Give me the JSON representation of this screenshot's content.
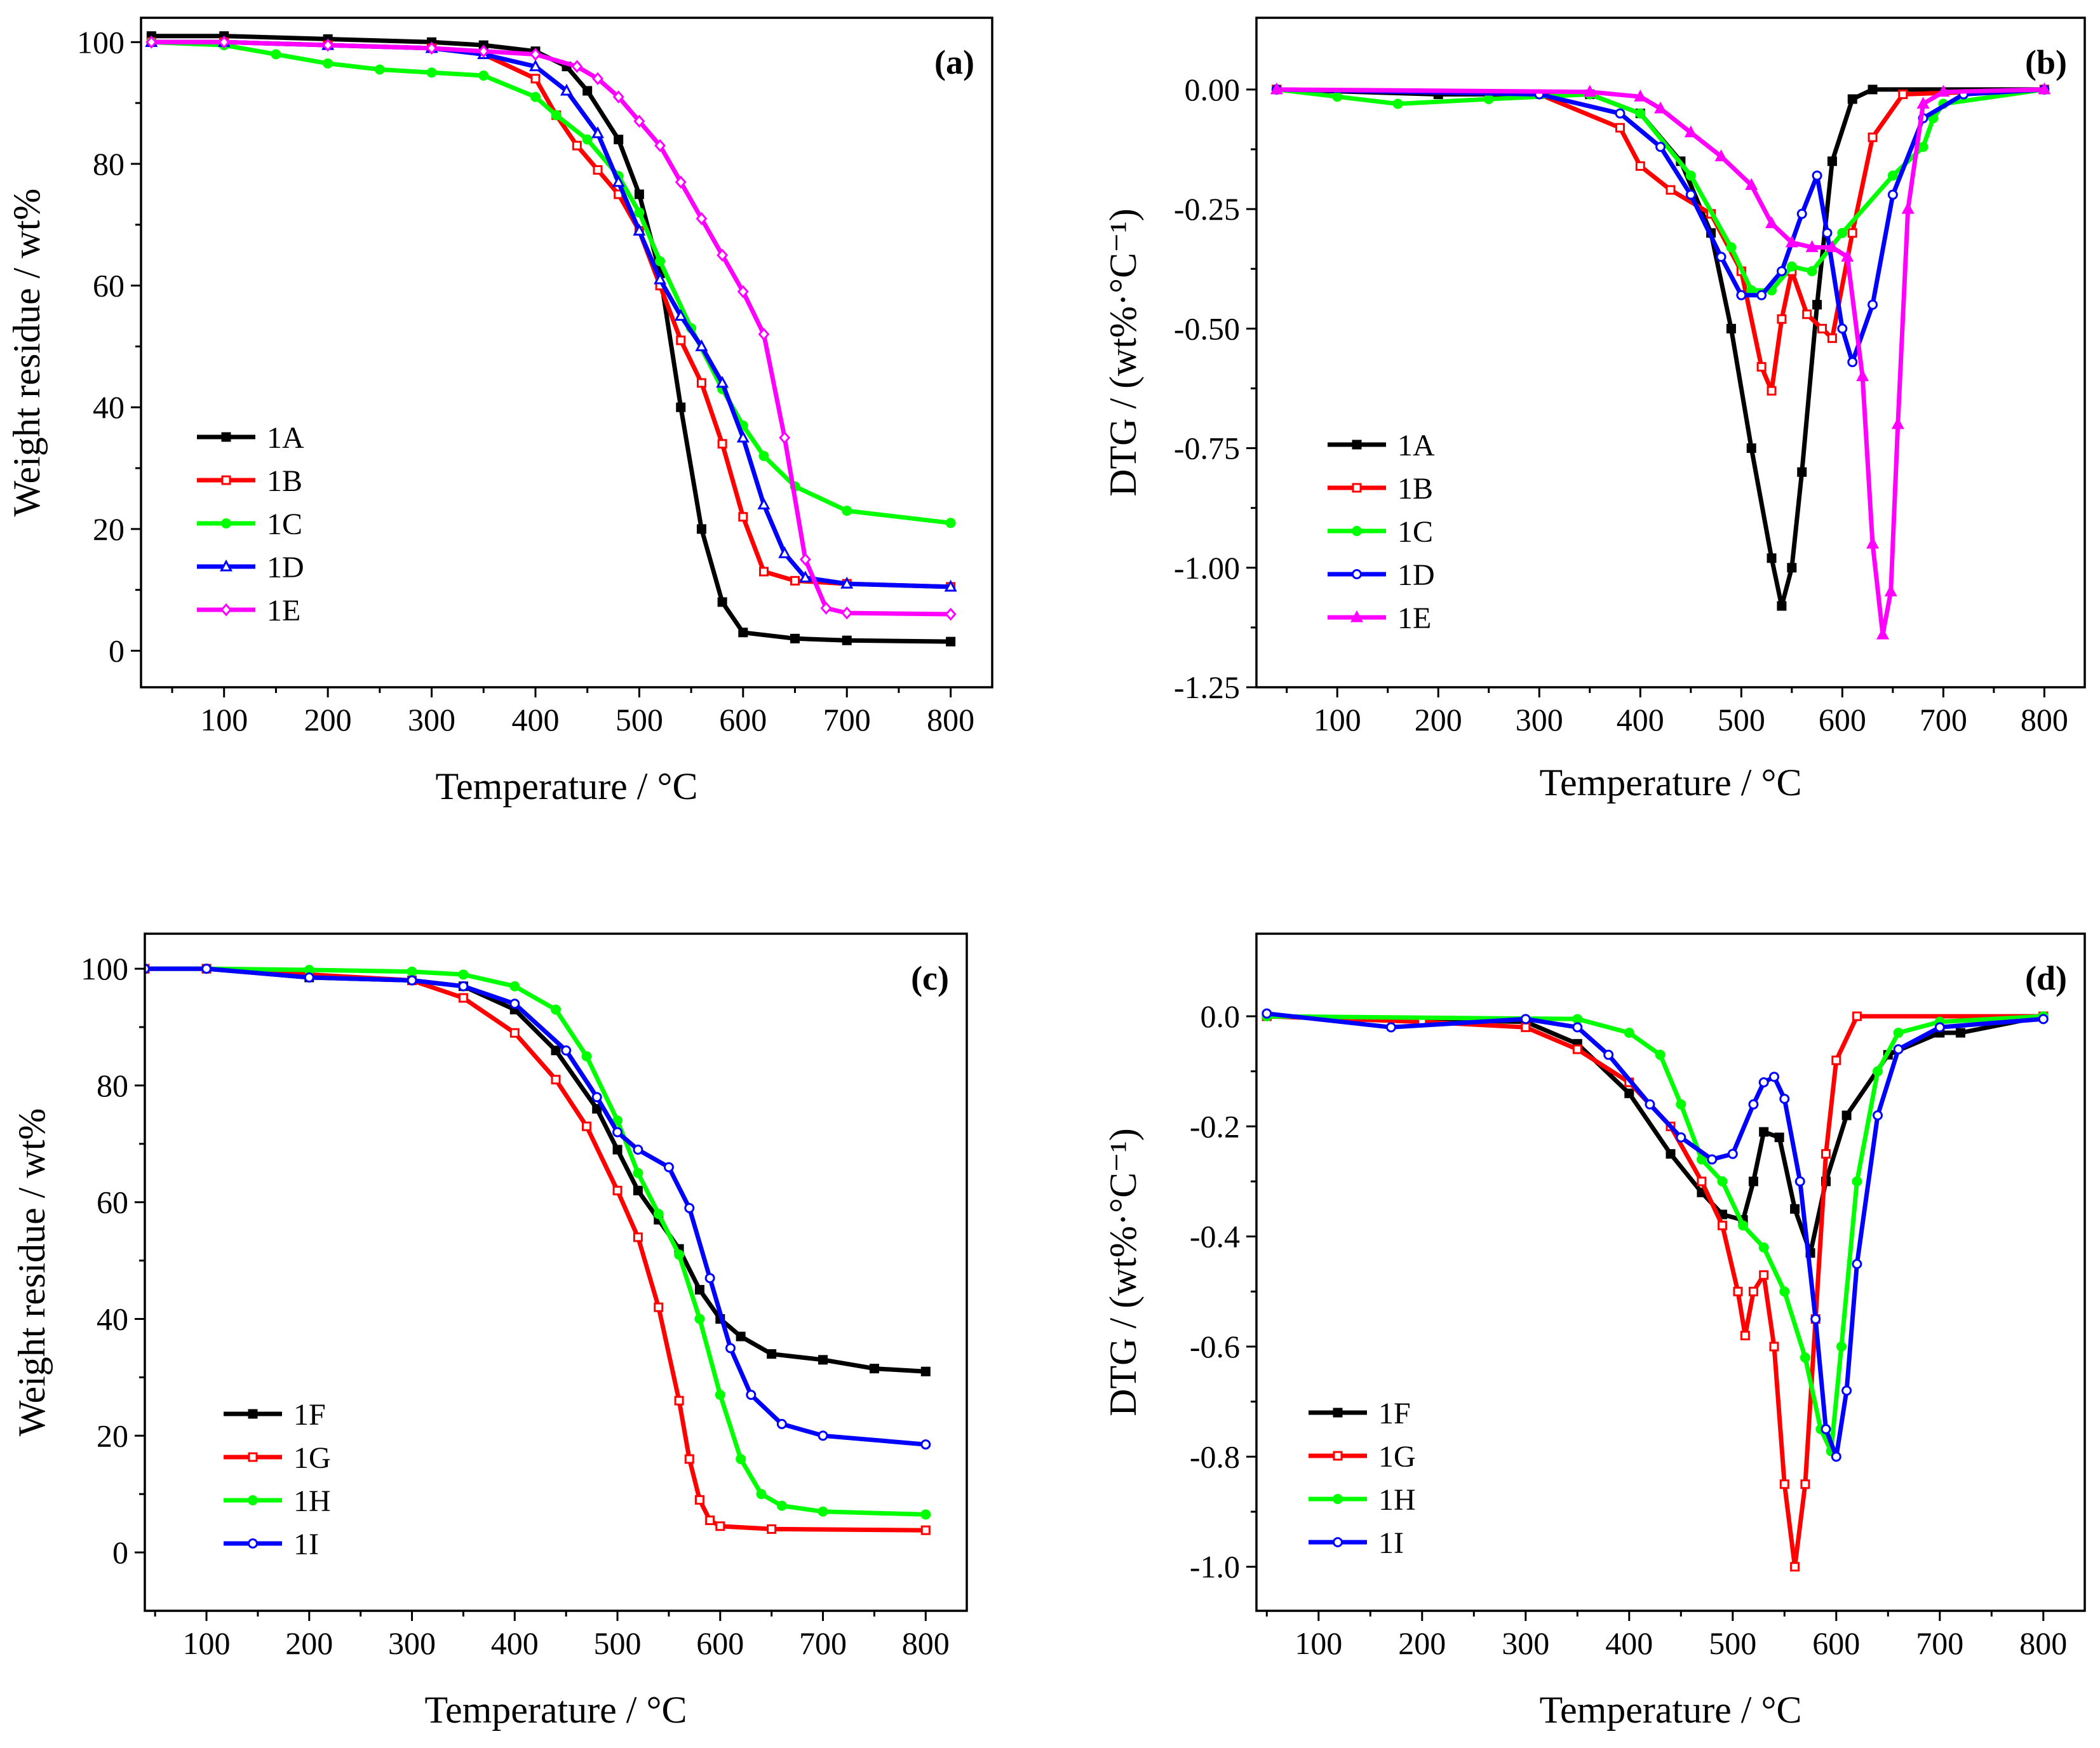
{
  "chart_data": [
    {
      "panel": "(a)",
      "type": "line",
      "xlabel": "Temperature  /  °C",
      "ylabel": "Weight residue / wt%",
      "xlim": [
        20,
        840
      ],
      "ylim": [
        -6,
        104
      ],
      "xticks": [
        100,
        200,
        300,
        400,
        500,
        600,
        700,
        800
      ],
      "yticks": [
        0,
        20,
        40,
        60,
        80,
        100
      ],
      "ytick_labels": [
        "0",
        "20",
        "40",
        "60",
        "80",
        "100"
      ],
      "legend_position": "lower-left",
      "series": [
        {
          "name": "1A",
          "color": "#000000",
          "marker": "square-filled",
          "x": [
            30,
            100,
            200,
            300,
            350,
            400,
            430,
            450,
            480,
            500,
            520,
            540,
            560,
            580,
            600,
            650,
            700,
            800
          ],
          "y": [
            101,
            101,
            100.5,
            100,
            99.5,
            98.5,
            96,
            92,
            84,
            75,
            62,
            40,
            20,
            8,
            3,
            2,
            1.7,
            1.5
          ]
        },
        {
          "name": "1B",
          "color": "#ff0000",
          "marker": "square-open",
          "x": [
            30,
            100,
            200,
            300,
            350,
            400,
            420,
            440,
            460,
            480,
            500,
            520,
            540,
            560,
            580,
            600,
            620,
            650,
            700,
            800
          ],
          "y": [
            100,
            100,
            99.5,
            99,
            98,
            94,
            88,
            83,
            79,
            75,
            69,
            60,
            51,
            44,
            34,
            22,
            13,
            11.5,
            11,
            10.5
          ]
        },
        {
          "name": "1C",
          "color": "#00ff00",
          "marker": "circle-filled",
          "x": [
            30,
            100,
            150,
            200,
            250,
            300,
            350,
            400,
            420,
            450,
            480,
            500,
            520,
            550,
            580,
            600,
            620,
            650,
            700,
            800
          ],
          "y": [
            100,
            99.5,
            98,
            96.5,
            95.5,
            95,
            94.5,
            91,
            88,
            84,
            78,
            72,
            64,
            53,
            43,
            37,
            32,
            27,
            23,
            21
          ]
        },
        {
          "name": "1D",
          "color": "#0000ff",
          "marker": "triangle-open",
          "x": [
            30,
            100,
            200,
            300,
            350,
            400,
            430,
            460,
            480,
            500,
            520,
            540,
            560,
            580,
            600,
            620,
            640,
            660,
            700,
            800
          ],
          "y": [
            100,
            100,
            99.5,
            99,
            98,
            96,
            92,
            85,
            77,
            69,
            61,
            55,
            50,
            44,
            35,
            24,
            16,
            12,
            11,
            10.5
          ]
        },
        {
          "name": "1E",
          "color": "#ff00ff",
          "marker": "diamond-open",
          "x": [
            30,
            100,
            200,
            300,
            350,
            400,
            440,
            460,
            480,
            500,
            520,
            540,
            560,
            580,
            600,
            620,
            640,
            660,
            680,
            700,
            800
          ],
          "y": [
            100,
            100,
            99.5,
            99,
            98.5,
            98,
            96,
            94,
            91,
            87,
            83,
            77,
            71,
            65,
            59,
            52,
            35,
            15,
            7,
            6.2,
            6
          ]
        }
      ]
    },
    {
      "panel": "(b)",
      "type": "line",
      "xlabel": "Temperature / °C",
      "ylabel": "DTG / (wt%·°C⁻¹)",
      "xlim": [
        20,
        840
      ],
      "ylim": [
        -1.25,
        0.15
      ],
      "xticks": [
        100,
        200,
        300,
        400,
        500,
        600,
        700,
        800
      ],
      "yticks": [
        0.0,
        -0.25,
        -0.5,
        -0.75,
        -1.0,
        -1.25
      ],
      "ytick_labels": [
        "0.00",
        "-0.25",
        "-0.50",
        "-0.75",
        "-1.00",
        "-1.25"
      ],
      "legend_position": "lower-left",
      "series": [
        {
          "name": "1A",
          "color": "#000000",
          "marker": "square-filled",
          "x": [
            40,
            200,
            350,
            400,
            440,
            470,
            490,
            510,
            530,
            540,
            550,
            560,
            575,
            590,
            610,
            630,
            800
          ],
          "y": [
            0,
            -0.01,
            -0.01,
            -0.05,
            -0.15,
            -0.3,
            -0.5,
            -0.75,
            -0.98,
            -1.08,
            -1.0,
            -0.8,
            -0.45,
            -0.15,
            -0.02,
            0,
            0
          ]
        },
        {
          "name": "1B",
          "color": "#ff0000",
          "marker": "square-open",
          "x": [
            40,
            300,
            380,
            400,
            430,
            470,
            500,
            520,
            530,
            540,
            550,
            565,
            580,
            590,
            610,
            630,
            660,
            800
          ],
          "y": [
            0,
            -0.01,
            -0.08,
            -0.16,
            -0.21,
            -0.26,
            -0.38,
            -0.58,
            -0.63,
            -0.48,
            -0.38,
            -0.47,
            -0.5,
            -0.52,
            -0.3,
            -0.1,
            -0.01,
            0
          ]
        },
        {
          "name": "1C",
          "color": "#00ff00",
          "marker": "circle-filled",
          "x": [
            40,
            100,
            160,
            250,
            350,
            400,
            450,
            490,
            510,
            530,
            550,
            570,
            600,
            650,
            680,
            690,
            700,
            800
          ],
          "y": [
            0,
            -0.015,
            -0.03,
            -0.02,
            -0.01,
            -0.05,
            -0.18,
            -0.33,
            -0.42,
            -0.42,
            -0.37,
            -0.38,
            -0.3,
            -0.18,
            -0.12,
            -0.06,
            -0.03,
            0
          ]
        },
        {
          "name": "1D",
          "color": "#0000ff",
          "marker": "circle-open",
          "x": [
            40,
            300,
            380,
            420,
            450,
            480,
            500,
            520,
            540,
            560,
            575,
            585,
            600,
            610,
            630,
            650,
            680,
            720,
            800
          ],
          "y": [
            0,
            -0.01,
            -0.05,
            -0.12,
            -0.22,
            -0.35,
            -0.43,
            -0.43,
            -0.38,
            -0.26,
            -0.18,
            -0.3,
            -0.5,
            -0.57,
            -0.45,
            -0.22,
            -0.06,
            -0.01,
            0
          ]
        },
        {
          "name": "1E",
          "color": "#ff00ff",
          "marker": "triangle-filled",
          "x": [
            40,
            350,
            400,
            420,
            450,
            480,
            510,
            530,
            550,
            570,
            590,
            605,
            620,
            630,
            640,
            648,
            655,
            665,
            680,
            700,
            800
          ],
          "y": [
            0,
            -0.005,
            -0.015,
            -0.04,
            -0.09,
            -0.14,
            -0.2,
            -0.28,
            -0.32,
            -0.33,
            -0.33,
            -0.35,
            -0.6,
            -0.95,
            -1.14,
            -1.05,
            -0.7,
            -0.25,
            -0.03,
            -0.005,
            0
          ]
        }
      ]
    },
    {
      "panel": "(c)",
      "type": "line",
      "xlabel": "Temperature / °C",
      "ylabel": "Weight residue / wt%",
      "xlim": [
        40,
        840
      ],
      "ylim": [
        -10,
        106
      ],
      "xticks": [
        100,
        200,
        300,
        400,
        500,
        600,
        700,
        800
      ],
      "yticks": [
        0,
        20,
        40,
        60,
        80,
        100
      ],
      "ytick_labels": [
        "0",
        "20",
        "40",
        "60",
        "80",
        "100"
      ],
      "legend_position": "lower-left",
      "series": [
        {
          "name": "1F",
          "color": "#000000",
          "marker": "square-filled",
          "x": [
            40,
            100,
            200,
            300,
            350,
            400,
            440,
            480,
            500,
            520,
            540,
            560,
            580,
            600,
            620,
            650,
            700,
            750,
            800
          ],
          "y": [
            100,
            100,
            98.5,
            98,
            97,
            93,
            86,
            76,
            69,
            62,
            57,
            52,
            45,
            40,
            37,
            34,
            33,
            31.5,
            31
          ]
        },
        {
          "name": "1G",
          "color": "#ff0000",
          "marker": "square-open",
          "x": [
            40,
            100,
            200,
            300,
            350,
            400,
            440,
            470,
            500,
            520,
            540,
            560,
            570,
            580,
            590,
            600,
            650,
            800
          ],
          "y": [
            100,
            100,
            99,
            98,
            95,
            89,
            81,
            73,
            62,
            54,
            42,
            26,
            16,
            9,
            5.5,
            4.5,
            4,
            3.8
          ]
        },
        {
          "name": "1H",
          "color": "#00ff00",
          "marker": "circle-filled",
          "x": [
            40,
            100,
            200,
            300,
            350,
            400,
            440,
            470,
            500,
            520,
            540,
            560,
            580,
            600,
            620,
            640,
            660,
            700,
            800
          ],
          "y": [
            100,
            100,
            99.8,
            99.5,
            99,
            97,
            93,
            85,
            74,
            65,
            58,
            51,
            40,
            27,
            16,
            10,
            8,
            7,
            6.5
          ]
        },
        {
          "name": "1I",
          "color": "#0000ff",
          "marker": "circle-open",
          "x": [
            40,
            100,
            200,
            300,
            350,
            400,
            450,
            480,
            500,
            520,
            550,
            570,
            590,
            610,
            630,
            660,
            700,
            800
          ],
          "y": [
            100,
            100,
            98.5,
            98,
            97,
            94,
            86,
            78,
            72,
            69,
            66,
            59,
            47,
            35,
            27,
            22,
            20,
            18.5
          ]
        }
      ]
    },
    {
      "panel": "(d)",
      "type": "line",
      "xlabel": "Temperature / °C",
      "ylabel": "DTG / (wt%·°C⁻¹)",
      "xlim": [
        40,
        840
      ],
      "ylim": [
        -1.08,
        0.15
      ],
      "xticks": [
        100,
        200,
        300,
        400,
        500,
        600,
        700,
        800
      ],
      "yticks": [
        0.0,
        -0.2,
        -0.4,
        -0.6,
        -0.8,
        -1.0
      ],
      "ytick_labels": [
        "0.0",
        "-0.2",
        "-0.4",
        "-0.6",
        "-0.8",
        "-1.0"
      ],
      "legend_position": "lower-left",
      "series": [
        {
          "name": "1F",
          "color": "#000000",
          "marker": "square-filled",
          "x": [
            50,
            300,
            350,
            400,
            440,
            470,
            490,
            510,
            520,
            530,
            545,
            560,
            575,
            590,
            610,
            650,
            700,
            720,
            800
          ],
          "y": [
            0,
            -0.01,
            -0.05,
            -0.14,
            -0.25,
            -0.32,
            -0.36,
            -0.37,
            -0.3,
            -0.21,
            -0.22,
            -0.35,
            -0.43,
            -0.3,
            -0.18,
            -0.07,
            -0.03,
            -0.03,
            0
          ]
        },
        {
          "name": "1G",
          "color": "#ff0000",
          "marker": "square-open",
          "x": [
            50,
            200,
            300,
            350,
            400,
            440,
            470,
            490,
            505,
            512,
            520,
            530,
            540,
            550,
            560,
            570,
            580,
            590,
            600,
            620,
            800
          ],
          "y": [
            0,
            -0.01,
            -0.02,
            -0.06,
            -0.12,
            -0.2,
            -0.3,
            -0.38,
            -0.5,
            -0.58,
            -0.5,
            -0.47,
            -0.6,
            -0.85,
            -1.0,
            -0.85,
            -0.55,
            -0.25,
            -0.08,
            0,
            0
          ]
        },
        {
          "name": "1H",
          "color": "#00ff00",
          "marker": "circle-filled",
          "x": [
            50,
            350,
            400,
            430,
            450,
            470,
            490,
            510,
            530,
            550,
            570,
            585,
            595,
            605,
            620,
            640,
            660,
            700,
            800
          ],
          "y": [
            0,
            -0.005,
            -0.03,
            -0.07,
            -0.16,
            -0.26,
            -0.3,
            -0.38,
            -0.42,
            -0.5,
            -0.62,
            -0.75,
            -0.79,
            -0.6,
            -0.3,
            -0.1,
            -0.03,
            -0.01,
            0
          ]
        },
        {
          "name": "1I",
          "color": "#0000ff",
          "marker": "circle-open",
          "x": [
            50,
            170,
            300,
            350,
            380,
            420,
            450,
            480,
            500,
            520,
            530,
            540,
            550,
            565,
            580,
            590,
            600,
            610,
            620,
            640,
            660,
            700,
            800
          ],
          "y": [
            0.005,
            -0.02,
            -0.005,
            -0.02,
            -0.07,
            -0.16,
            -0.22,
            -0.26,
            -0.25,
            -0.16,
            -0.12,
            -0.11,
            -0.15,
            -0.3,
            -0.55,
            -0.75,
            -0.8,
            -0.68,
            -0.45,
            -0.18,
            -0.06,
            -0.02,
            -0.005
          ]
        }
      ]
    }
  ]
}
